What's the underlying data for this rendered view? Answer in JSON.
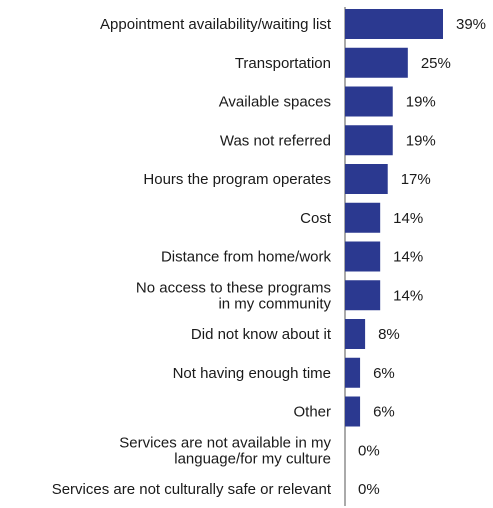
{
  "chart_data": {
    "type": "bar",
    "orientation": "horizontal",
    "title": "",
    "xlabel": "",
    "ylabel": "",
    "xlim": [
      0,
      39
    ],
    "grid": false,
    "legend": "none",
    "bar_color": "#2b3990",
    "axis_color": "#555555",
    "categories": [
      [
        "Appointment availability/waiting list"
      ],
      [
        "Transportation"
      ],
      [
        "Available spaces"
      ],
      [
        "Was not referred"
      ],
      [
        "Hours the program operates"
      ],
      [
        "Cost"
      ],
      [
        "Distance from home/work"
      ],
      [
        "No access to these programs",
        "in my community"
      ],
      [
        "Did not know about it"
      ],
      [
        "Not having enough time"
      ],
      [
        "Other"
      ],
      [
        "Services are not available in my",
        "language/for my culture"
      ],
      [
        "Services are not culturally safe or relevant"
      ]
    ],
    "values": [
      39,
      25,
      19,
      19,
      17,
      14,
      14,
      14,
      8,
      6,
      6,
      0,
      0
    ],
    "value_labels": [
      "39%",
      "25%",
      "19%",
      "19%",
      "17%",
      "14%",
      "14%",
      "14%",
      "8%",
      "6%",
      "6%",
      "0%",
      "0%"
    ]
  }
}
